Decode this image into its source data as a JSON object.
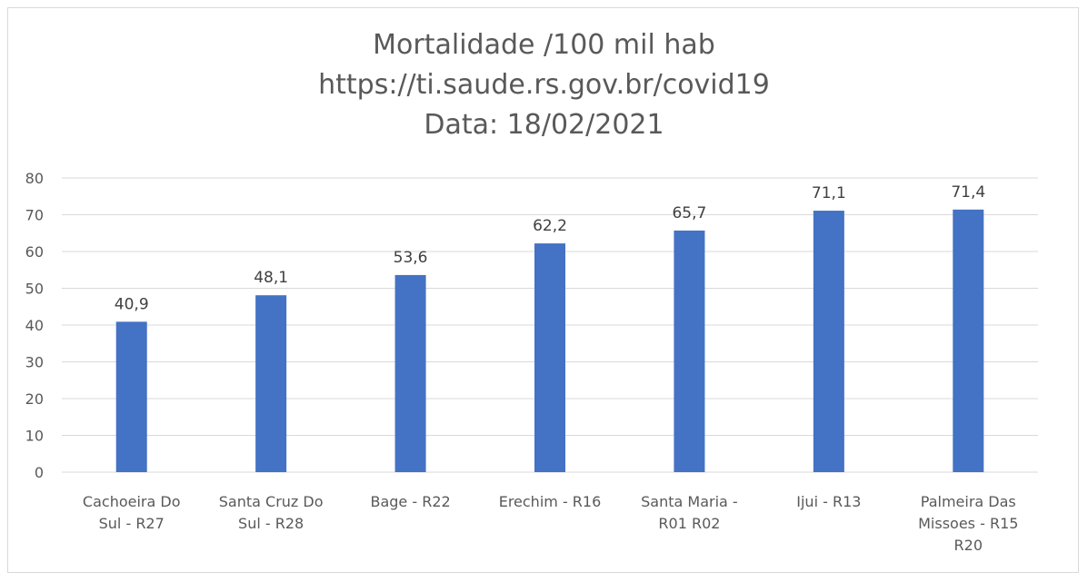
{
  "chart_data": {
    "type": "bar",
    "title_lines": [
      "Mortalidade /100 mil hab",
      "https://ti.saude.rs.gov.br/covid19",
      "Data: 18/02/2021"
    ],
    "categories": [
      [
        "Cachoeira Do",
        "Sul - R27"
      ],
      [
        "Santa Cruz Do",
        "Sul - R28"
      ],
      [
        "Bage - R22"
      ],
      [
        "Erechim - R16"
      ],
      [
        "Santa Maria -",
        "R01 R02"
      ],
      [
        "Ijui - R13"
      ],
      [
        "Palmeira Das",
        "Missoes - R15",
        "R20"
      ]
    ],
    "values": [
      40.9,
      48.1,
      53.6,
      62.2,
      65.7,
      71.1,
      71.4
    ],
    "data_labels": [
      "40,9",
      "48,1",
      "53,6",
      "62,2",
      "65,7",
      "71,1",
      "71,4"
    ],
    "yticks": [
      "0",
      "10",
      "20",
      "30",
      "40",
      "50",
      "60",
      "70",
      "80"
    ],
    "ylim": [
      0,
      80
    ],
    "grid": true,
    "legend": "none",
    "bar_color": "#4472c4",
    "grid_color": "#d9d9d9"
  }
}
